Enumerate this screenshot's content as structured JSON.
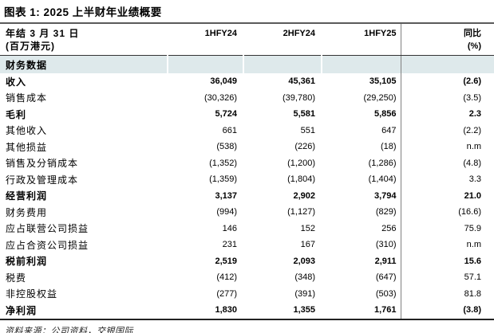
{
  "title": "图表 1: 2025 上半财年业绩概要",
  "table": {
    "header": {
      "label_line1": "年结 3 月 31 日",
      "label_line2": "(百万港元)",
      "cols": [
        "1HFY24",
        "2HFY24",
        "1HFY25"
      ],
      "yoy_line1": "同比",
      "yoy_line2": "(%)"
    },
    "section": "财务数据",
    "rows": [
      {
        "label": "收入",
        "v1": "36,049",
        "v2": "45,361",
        "v3": "35,105",
        "yoy": "(2.6)",
        "bold": true
      },
      {
        "label": "销售成本",
        "v1": "(30,326)",
        "v2": "(39,780)",
        "v3": "(29,250)",
        "yoy": "(3.5)",
        "bold": false
      },
      {
        "label": "毛利",
        "v1": "5,724",
        "v2": "5,581",
        "v3": "5,856",
        "yoy": "2.3",
        "bold": true
      },
      {
        "label": "其他收入",
        "v1": "661",
        "v2": "551",
        "v3": "647",
        "yoy": "(2.2)",
        "bold": false
      },
      {
        "label": "其他损益",
        "v1": "(538)",
        "v2": "(226)",
        "v3": "(18)",
        "yoy": "n.m",
        "bold": false
      },
      {
        "label": "销售及分销成本",
        "v1": "(1,352)",
        "v2": "(1,200)",
        "v3": "(1,286)",
        "yoy": "(4.8)",
        "bold": false
      },
      {
        "label": "行政及管理成本",
        "v1": "(1,359)",
        "v2": "(1,804)",
        "v3": "(1,404)",
        "yoy": "3.3",
        "bold": false
      },
      {
        "label": "经营利润",
        "v1": "3,137",
        "v2": "2,902",
        "v3": "3,794",
        "yoy": "21.0",
        "bold": true
      },
      {
        "label": "财务费用",
        "v1": "(994)",
        "v2": "(1,127)",
        "v3": "(829)",
        "yoy": "(16.6)",
        "bold": false
      },
      {
        "label": "应占联营公司损益",
        "v1": "146",
        "v2": "152",
        "v3": "256",
        "yoy": "75.9",
        "bold": false
      },
      {
        "label": "应占合资公司损益",
        "v1": "231",
        "v2": "167",
        "v3": "(310)",
        "yoy": "n.m",
        "bold": false
      },
      {
        "label": "税前利润",
        "v1": "2,519",
        "v2": "2,093",
        "v3": "2,911",
        "yoy": "15.6",
        "bold": true
      },
      {
        "label": "税费",
        "v1": "(412)",
        "v2": "(348)",
        "v3": "(647)",
        "yoy": "57.1",
        "bold": false
      },
      {
        "label": "非控股权益",
        "v1": "(277)",
        "v2": "(391)",
        "v3": "(503)",
        "yoy": "81.8",
        "bold": false
      },
      {
        "label": "净利润",
        "v1": "1,830",
        "v2": "1,355",
        "v3": "1,761",
        "yoy": "(3.8)",
        "bold": true
      }
    ]
  },
  "footer": "资料来源：公司资料，交银国际",
  "colors": {
    "section_bg": "#dee9eb",
    "divider": "#808080",
    "title_rule": "#5a5a5a"
  },
  "chart_data": {
    "type": "table",
    "title": "图表 1: 2025 上半财年业绩概要",
    "columns": [
      "年结 3 月 31 日 (百万港元)",
      "1HFY24",
      "2HFY24",
      "1HFY25",
      "同比 (%)"
    ],
    "rows": [
      [
        "收入",
        36049,
        45361,
        35105,
        -2.6
      ],
      [
        "销售成本",
        -30326,
        -39780,
        -29250,
        -3.5
      ],
      [
        "毛利",
        5724,
        5581,
        5856,
        2.3
      ],
      [
        "其他收入",
        661,
        551,
        647,
        -2.2
      ],
      [
        "其他损益",
        -538,
        -226,
        -18,
        "n.m"
      ],
      [
        "销售及分销成本",
        -1352,
        -1200,
        -1286,
        -4.8
      ],
      [
        "行政及管理成本",
        -1359,
        -1804,
        -1404,
        3.3
      ],
      [
        "经营利润",
        3137,
        2902,
        3794,
        21.0
      ],
      [
        "财务费用",
        -994,
        -1127,
        -829,
        -16.6
      ],
      [
        "应占联营公司损益",
        146,
        152,
        256,
        75.9
      ],
      [
        "应占合资公司损益",
        231,
        167,
        -310,
        "n.m"
      ],
      [
        "税前利润",
        2519,
        2093,
        2911,
        15.6
      ],
      [
        "税费",
        -412,
        -348,
        -647,
        57.1
      ],
      [
        "非控股权益",
        -277,
        -391,
        -503,
        81.8
      ],
      [
        "净利润",
        1830,
        1355,
        1761,
        -3.8
      ]
    ]
  }
}
